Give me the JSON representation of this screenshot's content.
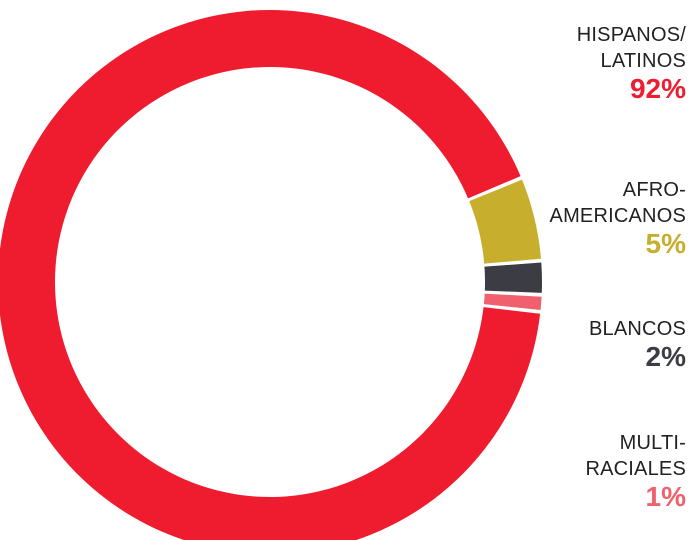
{
  "chart_data": {
    "type": "pie",
    "variant": "donut",
    "title": "",
    "legend_position": "right",
    "slices": [
      {
        "label_lines": [
          "HISPANOS/",
          "LATINOS"
        ],
        "value": 92,
        "value_label": "92%",
        "color": "#ee1c2e"
      },
      {
        "label_lines": [
          "AFRO-",
          "AMERICANOS"
        ],
        "value": 5,
        "value_label": "5%",
        "color": "#c7ae2d"
      },
      {
        "label_lines": [
          "BLANCOS"
        ],
        "value": 2,
        "value_label": "2%",
        "color": "#3c3d44"
      },
      {
        "label_lines": [
          "MULTI-",
          "RACIALES"
        ],
        "value": 1,
        "value_label": "1%",
        "color": "#f0606d"
      }
    ]
  }
}
